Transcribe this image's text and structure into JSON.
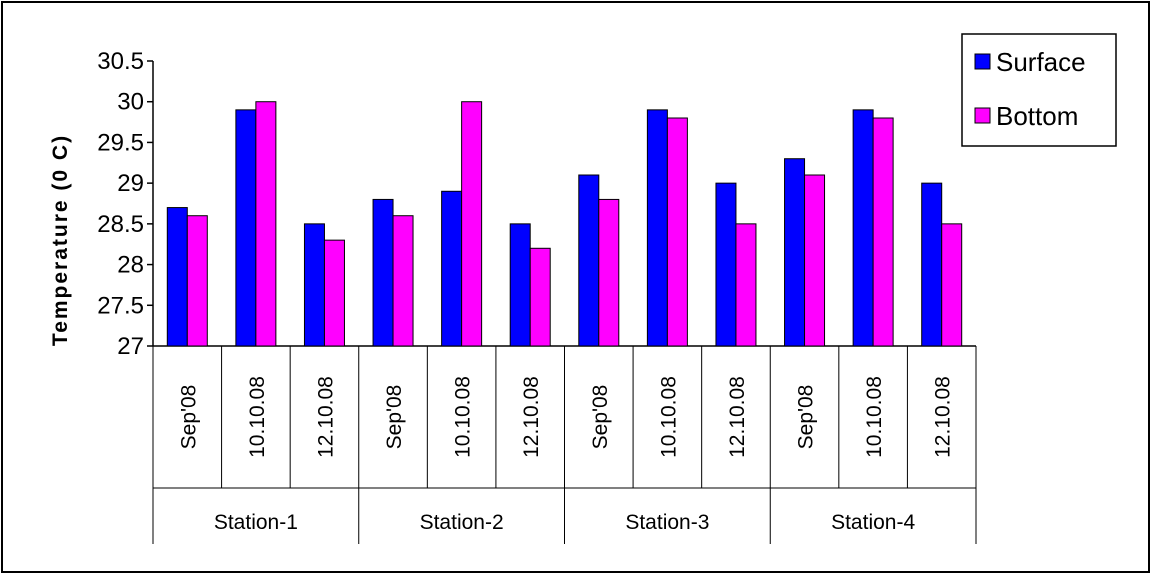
{
  "chart_data": {
    "type": "bar",
    "ylabel": "Temperature (0 C)",
    "ylim": [
      27,
      30.5
    ],
    "yticks": [
      "27",
      "27.5",
      "28",
      "28.5",
      "29",
      "29.5",
      "30",
      "30.5"
    ],
    "ytick_values": [
      27,
      27.5,
      28,
      28.5,
      29,
      29.5,
      30,
      30.5
    ],
    "grid": false,
    "legend_position": "top-right",
    "groups": [
      "Station-1",
      "Station-2",
      "Station-3",
      "Station-4"
    ],
    "categories": [
      "Sep'08",
      "10.10.08",
      "12.10.08",
      "Sep'08",
      "10.10.08",
      "12.10.08",
      "Sep'08",
      "10.10.08",
      "12.10.08",
      "Sep'08",
      "10.10.08",
      "12.10.08"
    ],
    "series": [
      {
        "name": "Surface",
        "color": "#0000ff",
        "values": [
          28.7,
          29.9,
          28.5,
          28.8,
          28.9,
          28.5,
          29.1,
          29.9,
          29.0,
          29.3,
          29.9,
          29.0
        ]
      },
      {
        "name": "Bottom",
        "color": "#ff00ff",
        "values": [
          28.6,
          30.0,
          28.3,
          28.6,
          30.0,
          28.2,
          28.8,
          29.8,
          28.5,
          29.1,
          29.8,
          28.5
        ]
      }
    ]
  }
}
